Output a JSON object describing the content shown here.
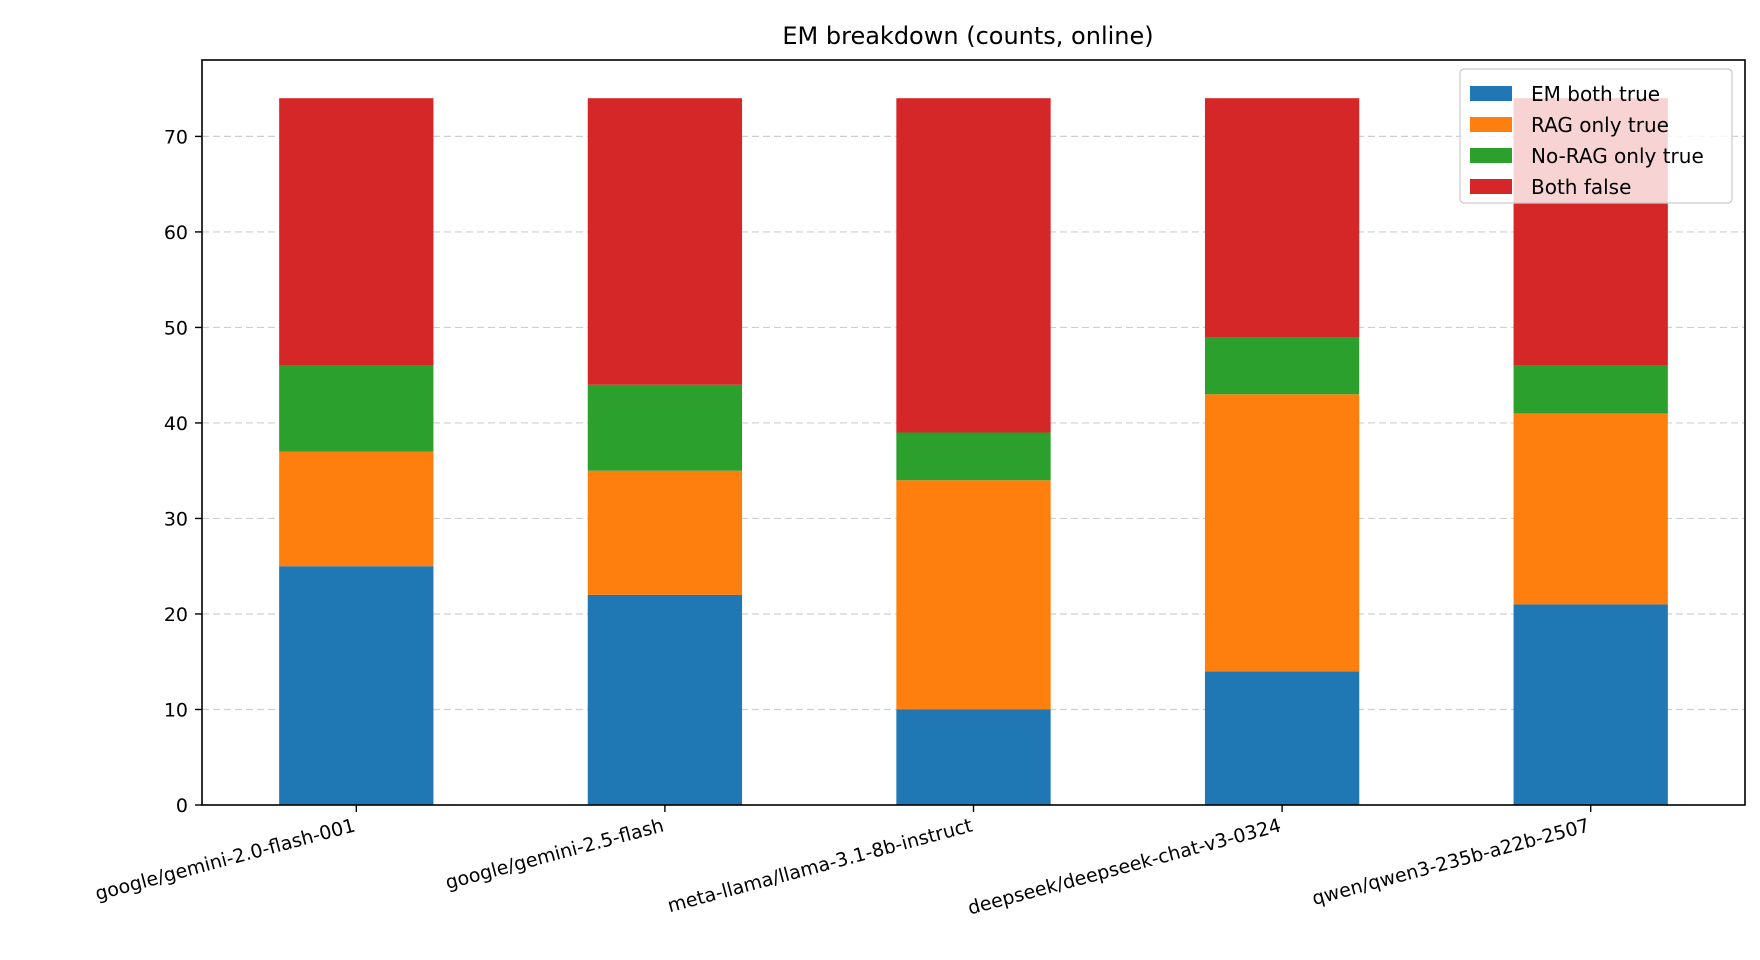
{
  "chart_data": {
    "type": "bar",
    "stacked": true,
    "title": "EM breakdown (counts, online)",
    "xlabel": "",
    "ylabel": "",
    "ylim": [
      0,
      78
    ],
    "yticks": [
      0,
      10,
      20,
      30,
      40,
      50,
      60,
      70
    ],
    "grid": "horizontal dashed",
    "legend_position": "top-right",
    "categories": [
      "google/gemini-2.0-flash-001",
      "google/gemini-2.5-flash",
      "meta-llama/llama-3.1-8b-instruct",
      "deepseek/deepseek-chat-v3-0324",
      "qwen/qwen3-235b-a22b-2507"
    ],
    "series": [
      {
        "name": "EM both true",
        "color": "#1f77b4",
        "values": [
          25,
          22,
          10,
          14,
          21
        ]
      },
      {
        "name": "RAG only true",
        "color": "#ff7f0e",
        "values": [
          12,
          13,
          24,
          29,
          20
        ]
      },
      {
        "name": "No-RAG only true",
        "color": "#2ca02c",
        "values": [
          9,
          9,
          5,
          6,
          5
        ]
      },
      {
        "name": "Both false",
        "color": "#d62728",
        "values": [
          28,
          30,
          35,
          25,
          28
        ]
      }
    ]
  }
}
